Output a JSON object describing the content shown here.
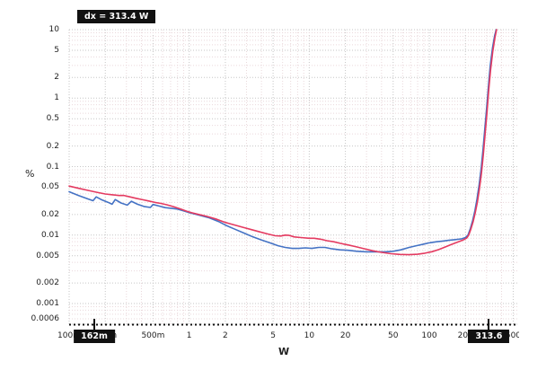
{
  "readouts": {
    "dx_label": "dx = 313.4 W"
  },
  "cursors": {
    "left": {
      "value": 0.162,
      "label": "162m"
    },
    "right": {
      "value": 313.6,
      "label": "313.6"
    }
  },
  "axes": {
    "x": {
      "label": "W",
      "scale": "log",
      "min": 0.1,
      "max": 550,
      "ticks": [
        {
          "value": 0.1,
          "label": "100m"
        },
        {
          "value": 0.2,
          "label": "200m"
        },
        {
          "value": 0.5,
          "label": "500m"
        },
        {
          "value": 1,
          "label": "1"
        },
        {
          "value": 2,
          "label": "2"
        },
        {
          "value": 5,
          "label": "5"
        },
        {
          "value": 10,
          "label": "10"
        },
        {
          "value": 20,
          "label": "20"
        },
        {
          "value": 50,
          "label": "50"
        },
        {
          "value": 100,
          "label": "100"
        },
        {
          "value": 200,
          "label": "200"
        },
        {
          "value": 500,
          "label": "500"
        }
      ]
    },
    "y": {
      "label": "%",
      "scale": "log",
      "min": 0.0005,
      "max": 10,
      "ticks": [
        {
          "value": 10,
          "label": "10"
        },
        {
          "value": 5,
          "label": "5"
        },
        {
          "value": 2,
          "label": "2"
        },
        {
          "value": 1,
          "label": "1"
        },
        {
          "value": 0.5,
          "label": "0.5"
        },
        {
          "value": 0.2,
          "label": "0.2"
        },
        {
          "value": 0.1,
          "label": "0.1"
        },
        {
          "value": 0.05,
          "label": "0.05"
        },
        {
          "value": 0.02,
          "label": "0.02"
        },
        {
          "value": 0.01,
          "label": "0.01"
        },
        {
          "value": 0.005,
          "label": "0.005"
        },
        {
          "value": 0.002,
          "label": "0.002"
        },
        {
          "value": 0.001,
          "label": "0.001"
        },
        {
          "value": 0.0006,
          "label": "0.0006"
        }
      ]
    }
  },
  "chart_data": {
    "type": "line",
    "title": "",
    "xlabel": "W",
    "ylabel": "%",
    "x_scale": "log",
    "y_scale": "log",
    "xlim": [
      0.1,
      550
    ],
    "ylim": [
      0.0005,
      10
    ],
    "grid": "log-decade dotted, major at 1-2-5, minor at 3-4-6-7-8-9",
    "legend": "none",
    "series": [
      {
        "name": "blue-trace",
        "color": "#4472c4",
        "points": [
          [
            0.1,
            0.043
          ],
          [
            0.12,
            0.0378
          ],
          [
            0.145,
            0.0335
          ],
          [
            0.158,
            0.0318
          ],
          [
            0.168,
            0.0362
          ],
          [
            0.185,
            0.033
          ],
          [
            0.21,
            0.0302
          ],
          [
            0.228,
            0.0282
          ],
          [
            0.242,
            0.033
          ],
          [
            0.27,
            0.0295
          ],
          [
            0.305,
            0.0274
          ],
          [
            0.33,
            0.0312
          ],
          [
            0.37,
            0.0282
          ],
          [
            0.42,
            0.0262
          ],
          [
            0.475,
            0.0253
          ],
          [
            0.5,
            0.028
          ],
          [
            0.56,
            0.0266
          ],
          [
            0.63,
            0.0252
          ],
          [
            0.72,
            0.0245
          ],
          [
            0.8,
            0.024
          ],
          [
            0.9,
            0.0226
          ],
          [
            1.0,
            0.0213
          ],
          [
            1.2,
            0.0196
          ],
          [
            1.45,
            0.018
          ],
          [
            1.75,
            0.0158
          ],
          [
            2.0,
            0.014
          ],
          [
            2.4,
            0.0122
          ],
          [
            2.9,
            0.0106
          ],
          [
            3.4,
            0.0094
          ],
          [
            4.0,
            0.0085
          ],
          [
            4.7,
            0.0077
          ],
          [
            5.5,
            0.007
          ],
          [
            6.3,
            0.0066
          ],
          [
            7.2,
            0.0064
          ],
          [
            8.2,
            0.0064
          ],
          [
            9.3,
            0.0065
          ],
          [
            10.5,
            0.0064
          ],
          [
            12,
            0.0066
          ],
          [
            13.5,
            0.0066
          ],
          [
            15.5,
            0.0063
          ],
          [
            18,
            0.0061
          ],
          [
            21,
            0.006
          ],
          [
            25,
            0.0058
          ],
          [
            30,
            0.0057
          ],
          [
            36,
            0.0057
          ],
          [
            43,
            0.0057
          ],
          [
            50,
            0.0058
          ],
          [
            58,
            0.0061
          ],
          [
            68,
            0.0066
          ],
          [
            78,
            0.007
          ],
          [
            90,
            0.0074
          ],
          [
            100,
            0.0077
          ],
          [
            115,
            0.008
          ],
          [
            130,
            0.0082
          ],
          [
            145,
            0.0084
          ],
          [
            165,
            0.0086
          ],
          [
            185,
            0.0088
          ],
          [
            200,
            0.0092
          ],
          [
            210,
            0.01
          ],
          [
            220,
            0.0125
          ],
          [
            230,
            0.0165
          ],
          [
            240,
            0.023
          ],
          [
            250,
            0.034
          ],
          [
            260,
            0.054
          ],
          [
            270,
            0.092
          ],
          [
            280,
            0.175
          ],
          [
            290,
            0.35
          ],
          [
            300,
            0.7
          ],
          [
            310,
            1.4
          ],
          [
            313.6,
            1.8
          ],
          [
            322,
            3.0
          ],
          [
            336,
            5.4
          ],
          [
            350,
            8.2
          ],
          [
            361,
            10
          ]
        ]
      },
      {
        "name": "red-trace",
        "color": "#e43a60",
        "points": [
          [
            0.1,
            0.052
          ],
          [
            0.12,
            0.0482
          ],
          [
            0.145,
            0.0448
          ],
          [
            0.17,
            0.0422
          ],
          [
            0.2,
            0.0398
          ],
          [
            0.23,
            0.0388
          ],
          [
            0.26,
            0.0378
          ],
          [
            0.285,
            0.038
          ],
          [
            0.32,
            0.0362
          ],
          [
            0.36,
            0.0345
          ],
          [
            0.41,
            0.0328
          ],
          [
            0.46,
            0.0315
          ],
          [
            0.52,
            0.03
          ],
          [
            0.58,
            0.029
          ],
          [
            0.65,
            0.0277
          ],
          [
            0.75,
            0.0258
          ],
          [
            0.85,
            0.024
          ],
          [
            0.95,
            0.0224
          ],
          [
            1.05,
            0.0212
          ],
          [
            1.2,
            0.02
          ],
          [
            1.4,
            0.0188
          ],
          [
            1.7,
            0.017
          ],
          [
            2.0,
            0.0153
          ],
          [
            2.4,
            0.014
          ],
          [
            2.8,
            0.013
          ],
          [
            3.3,
            0.012
          ],
          [
            3.9,
            0.0111
          ],
          [
            4.5,
            0.0104
          ],
          [
            5.2,
            0.0098
          ],
          [
            5.8,
            0.0097
          ],
          [
            6.3,
            0.01
          ],
          [
            6.8,
            0.0099
          ],
          [
            7.5,
            0.0094
          ],
          [
            8.5,
            0.0092
          ],
          [
            10,
            0.009
          ],
          [
            11,
            0.009
          ],
          [
            12.5,
            0.0087
          ],
          [
            14,
            0.0083
          ],
          [
            16,
            0.008
          ],
          [
            18,
            0.0076
          ],
          [
            21,
            0.0072
          ],
          [
            25,
            0.0067
          ],
          [
            29,
            0.0063
          ],
          [
            34,
            0.0059
          ],
          [
            40,
            0.0056
          ],
          [
            48,
            0.00535
          ],
          [
            57,
            0.00522
          ],
          [
            68,
            0.00518
          ],
          [
            80,
            0.00525
          ],
          [
            92,
            0.00545
          ],
          [
            105,
            0.00572
          ],
          [
            120,
            0.00615
          ],
          [
            135,
            0.00668
          ],
          [
            150,
            0.00722
          ],
          [
            170,
            0.00782
          ],
          [
            190,
            0.00845
          ],
          [
            205,
            0.00905
          ],
          [
            213,
            0.01
          ],
          [
            222,
            0.0122
          ],
          [
            232,
            0.0158
          ],
          [
            242,
            0.0215
          ],
          [
            252,
            0.031
          ],
          [
            262,
            0.048
          ],
          [
            272,
            0.08
          ],
          [
            282,
            0.15
          ],
          [
            292,
            0.3
          ],
          [
            302,
            0.6
          ],
          [
            313.6,
            1.4
          ],
          [
            324,
            2.6
          ],
          [
            338,
            4.8
          ],
          [
            352,
            7.6
          ],
          [
            363,
            10
          ]
        ]
      }
    ]
  }
}
